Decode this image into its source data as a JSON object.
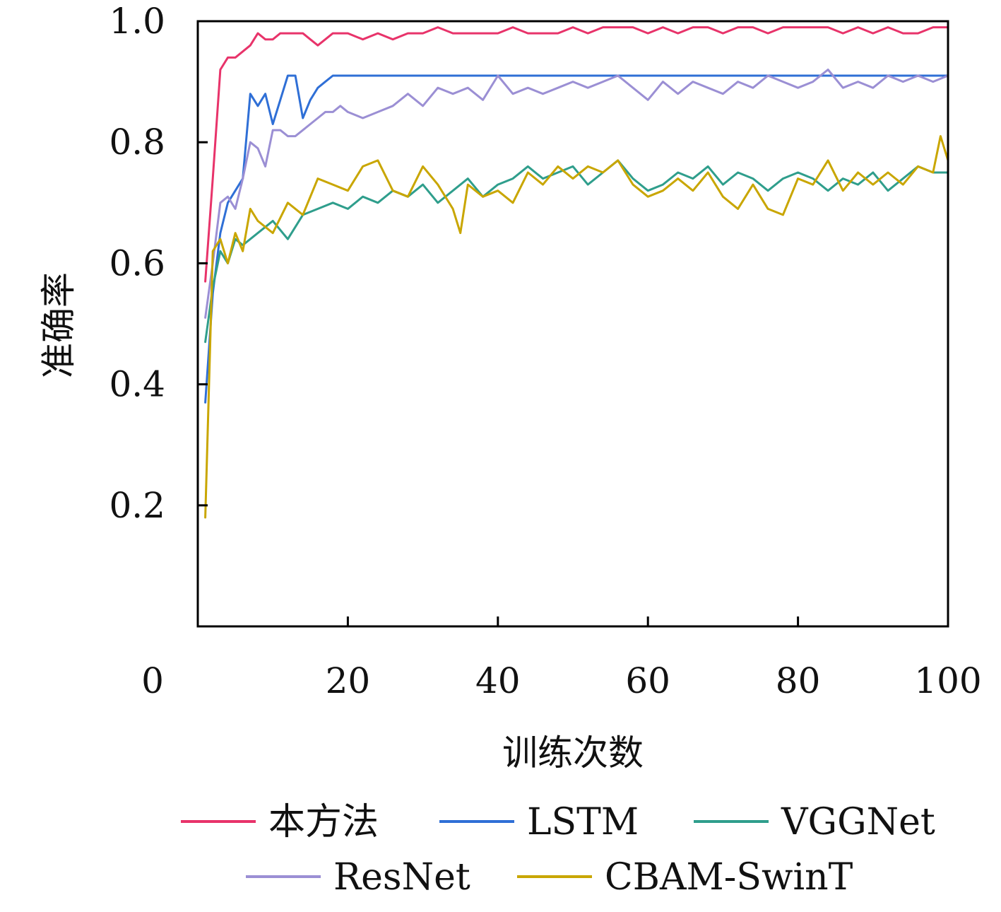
{
  "chart_data": {
    "type": "line",
    "xlabel": "训练次数",
    "ylabel": "准确率",
    "xlim": [
      0,
      100
    ],
    "ylim": [
      0,
      1.0
    ],
    "xticks": [
      "0",
      "20",
      "40",
      "60",
      "80",
      "100"
    ],
    "yticks": [
      "0.2",
      "0.4",
      "0.6",
      "0.8",
      "1.0"
    ],
    "grid": false,
    "legend_position": "bottom",
    "series": [
      {
        "name": "本方法",
        "color": "#e8336a",
        "x": [
          1,
          2,
          3,
          4,
          5,
          6,
          7,
          8,
          9,
          10,
          11,
          12,
          13,
          14,
          15,
          16,
          17,
          18,
          19,
          20,
          22,
          24,
          26,
          28,
          30,
          32,
          34,
          36,
          38,
          40,
          42,
          44,
          46,
          48,
          50,
          52,
          54,
          56,
          58,
          60,
          62,
          64,
          66,
          68,
          70,
          72,
          74,
          76,
          78,
          80,
          82,
          84,
          86,
          88,
          90,
          92,
          94,
          96,
          98,
          100
        ],
        "values": [
          0.57,
          0.74,
          0.92,
          0.94,
          0.94,
          0.95,
          0.96,
          0.98,
          0.97,
          0.97,
          0.98,
          0.98,
          0.98,
          0.98,
          0.97,
          0.96,
          0.97,
          0.98,
          0.98,
          0.98,
          0.97,
          0.98,
          0.97,
          0.98,
          0.98,
          0.99,
          0.98,
          0.98,
          0.98,
          0.98,
          0.99,
          0.98,
          0.98,
          0.98,
          0.99,
          0.98,
          0.99,
          0.99,
          0.99,
          0.98,
          0.99,
          0.98,
          0.99,
          0.99,
          0.98,
          0.99,
          0.99,
          0.98,
          0.99,
          0.99,
          0.99,
          0.99,
          0.98,
          0.99,
          0.98,
          0.99,
          0.98,
          0.98,
          0.99,
          0.99
        ]
      },
      {
        "name": "LSTM",
        "color": "#2f6fd6",
        "x": [
          1,
          2,
          3,
          4,
          5,
          6,
          7,
          8,
          9,
          10,
          11,
          12,
          13,
          14,
          15,
          16,
          17,
          18,
          19,
          20,
          30,
          40,
          50,
          60,
          70,
          80,
          90,
          100
        ],
        "values": [
          0.37,
          0.55,
          0.65,
          0.7,
          0.72,
          0.74,
          0.88,
          0.86,
          0.88,
          0.83,
          0.87,
          0.91,
          0.91,
          0.84,
          0.87,
          0.89,
          0.9,
          0.91,
          0.91,
          0.91,
          0.91,
          0.91,
          0.91,
          0.91,
          0.91,
          0.91,
          0.91,
          0.91
        ]
      },
      {
        "name": "VGGNet",
        "color": "#2f9e8c",
        "x": [
          1,
          2,
          3,
          4,
          5,
          6,
          8,
          10,
          12,
          14,
          16,
          18,
          20,
          22,
          24,
          26,
          28,
          30,
          32,
          34,
          36,
          38,
          40,
          42,
          44,
          46,
          48,
          50,
          52,
          54,
          56,
          58,
          60,
          62,
          64,
          66,
          68,
          70,
          72,
          74,
          76,
          78,
          80,
          82,
          84,
          86,
          88,
          90,
          92,
          94,
          96,
          98,
          100
        ],
        "values": [
          0.47,
          0.56,
          0.62,
          0.6,
          0.64,
          0.63,
          0.65,
          0.67,
          0.64,
          0.68,
          0.69,
          0.7,
          0.69,
          0.71,
          0.7,
          0.72,
          0.71,
          0.73,
          0.7,
          0.72,
          0.74,
          0.71,
          0.73,
          0.74,
          0.76,
          0.74,
          0.75,
          0.76,
          0.73,
          0.75,
          0.77,
          0.74,
          0.72,
          0.73,
          0.75,
          0.74,
          0.76,
          0.73,
          0.75,
          0.74,
          0.72,
          0.74,
          0.75,
          0.74,
          0.72,
          0.74,
          0.73,
          0.75,
          0.72,
          0.74,
          0.76,
          0.75,
          0.75
        ]
      },
      {
        "name": "ResNet",
        "color": "#9b8fd4",
        "x": [
          1,
          2,
          3,
          4,
          5,
          6,
          7,
          8,
          9,
          10,
          11,
          12,
          13,
          14,
          15,
          16,
          17,
          18,
          19,
          20,
          22,
          24,
          26,
          28,
          30,
          32,
          34,
          36,
          38,
          40,
          42,
          44,
          46,
          48,
          50,
          52,
          54,
          56,
          58,
          60,
          62,
          64,
          66,
          68,
          70,
          72,
          74,
          76,
          78,
          80,
          82,
          84,
          86,
          88,
          90,
          92,
          94,
          96,
          98,
          100
        ],
        "values": [
          0.51,
          0.6,
          0.7,
          0.71,
          0.69,
          0.74,
          0.8,
          0.79,
          0.76,
          0.82,
          0.82,
          0.81,
          0.81,
          0.82,
          0.83,
          0.84,
          0.85,
          0.85,
          0.86,
          0.85,
          0.84,
          0.85,
          0.86,
          0.88,
          0.86,
          0.89,
          0.88,
          0.89,
          0.87,
          0.91,
          0.88,
          0.89,
          0.88,
          0.89,
          0.9,
          0.89,
          0.9,
          0.91,
          0.89,
          0.87,
          0.9,
          0.88,
          0.9,
          0.89,
          0.88,
          0.9,
          0.89,
          0.91,
          0.9,
          0.89,
          0.9,
          0.92,
          0.89,
          0.9,
          0.89,
          0.91,
          0.9,
          0.91,
          0.9,
          0.91
        ]
      },
      {
        "name": "CBAM-SwinT",
        "color": "#c9a600",
        "x": [
          1,
          2,
          3,
          4,
          5,
          6,
          7,
          8,
          10,
          12,
          14,
          16,
          18,
          20,
          22,
          24,
          26,
          28,
          30,
          32,
          34,
          35,
          36,
          38,
          40,
          42,
          44,
          46,
          48,
          50,
          52,
          54,
          56,
          58,
          60,
          62,
          64,
          66,
          68,
          70,
          72,
          74,
          76,
          78,
          80,
          82,
          84,
          86,
          88,
          90,
          92,
          94,
          96,
          98,
          99,
          100
        ],
        "values": [
          0.18,
          0.62,
          0.64,
          0.6,
          0.65,
          0.62,
          0.69,
          0.67,
          0.65,
          0.7,
          0.68,
          0.74,
          0.73,
          0.72,
          0.76,
          0.77,
          0.72,
          0.71,
          0.76,
          0.73,
          0.69,
          0.65,
          0.73,
          0.71,
          0.72,
          0.7,
          0.75,
          0.73,
          0.76,
          0.74,
          0.76,
          0.75,
          0.77,
          0.73,
          0.71,
          0.72,
          0.74,
          0.72,
          0.75,
          0.71,
          0.69,
          0.73,
          0.69,
          0.68,
          0.74,
          0.73,
          0.77,
          0.72,
          0.75,
          0.73,
          0.75,
          0.73,
          0.76,
          0.75,
          0.81,
          0.77
        ]
      }
    ]
  }
}
